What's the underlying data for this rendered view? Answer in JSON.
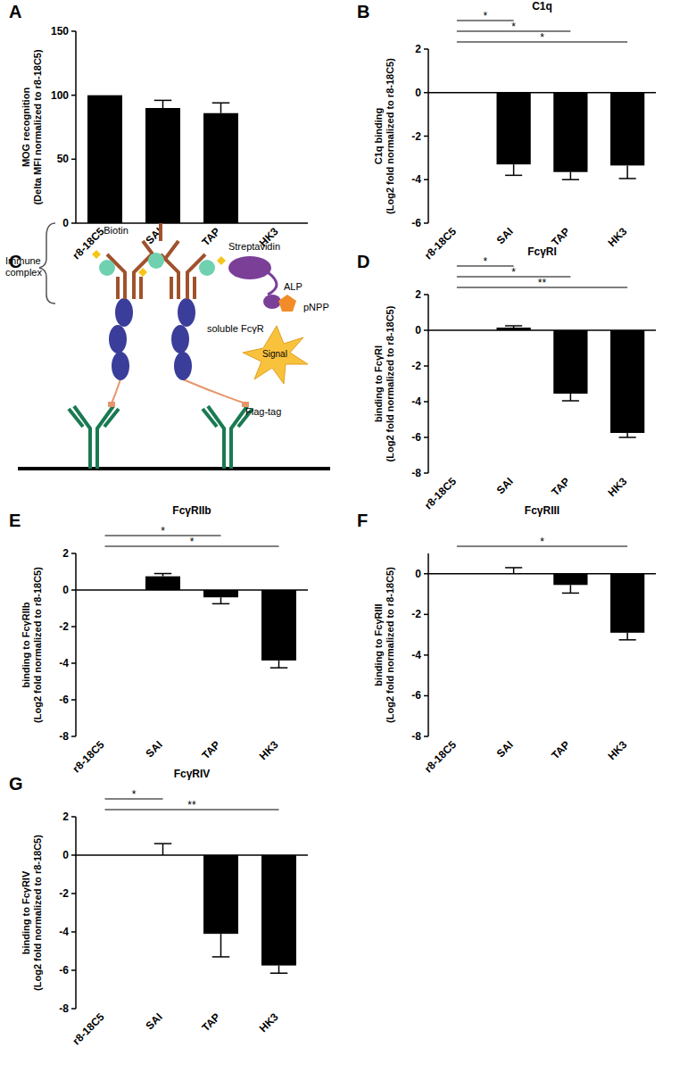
{
  "chart_data": [
    {
      "type": "bar",
      "panel": "A",
      "ylabel": "MOG recognition\n(Delta MFI normalized to r8-18C5)",
      "categories": [
        "r8-18C5",
        "SAI",
        "TAP",
        "HK3"
      ],
      "values": [
        100,
        90,
        86,
        0
      ],
      "errors": [
        0,
        6,
        8,
        0
      ],
      "color": "#000000",
      "ylim": [
        0,
        150
      ],
      "yticks": [
        0,
        50,
        100,
        150
      ],
      "significance": []
    },
    {
      "type": "bar",
      "panel": "B",
      "title": "C1q",
      "ylabel": "C1q binding\n(Log2 fold normalized to r8-18C5)",
      "categories": [
        "r8-18C5",
        "SAI",
        "TAP",
        "HK3"
      ],
      "values": [
        0,
        -3.3,
        -3.65,
        -3.35
      ],
      "errors": [
        0,
        0.5,
        0.35,
        0.6
      ],
      "color": "#000000",
      "ylim": [
        -6,
        2
      ],
      "yticks": [
        -6,
        -4,
        -2,
        0,
        2
      ],
      "significance": [
        {
          "from": 0,
          "to": 1,
          "label": "*"
        },
        {
          "from": 0,
          "to": 2,
          "label": "*"
        },
        {
          "from": 0,
          "to": 3,
          "label": "*"
        }
      ]
    },
    {
      "type": "bar",
      "panel": "D",
      "title": "FcγRI",
      "ylabel": "binding to FcγRI\n(Log2 fold normalized to r8-18C5)",
      "categories": [
        "r8-18C5",
        "SAI",
        "TAP",
        "HK3"
      ],
      "values": [
        0,
        0.15,
        -3.55,
        -5.75
      ],
      "errors": [
        0,
        0.1,
        0.4,
        0.25
      ],
      "color": "#000000",
      "ylim": [
        -8,
        2
      ],
      "yticks": [
        -8,
        -6,
        -4,
        -2,
        0,
        2
      ],
      "significance": [
        {
          "from": 0,
          "to": 1,
          "label": "*"
        },
        {
          "from": 0,
          "to": 2,
          "label": "*"
        },
        {
          "from": 0,
          "to": 3,
          "label": "**"
        }
      ]
    },
    {
      "type": "bar",
      "panel": "E",
      "title": "FcγRIIb",
      "ylabel": "binding to FcγRIIb\n(Log2 fold normalized to r8-18C5)",
      "categories": [
        "r8-18C5",
        "SAI",
        "TAP",
        "HK3"
      ],
      "values": [
        0,
        0.75,
        -0.4,
        -3.85
      ],
      "errors": [
        0,
        0.15,
        0.35,
        0.4
      ],
      "color": "#000000",
      "ylim": [
        -8,
        2
      ],
      "yticks": [
        -8,
        -6,
        -4,
        -2,
        0,
        2
      ],
      "significance": [
        {
          "from": 0,
          "to": 2,
          "label": "*"
        },
        {
          "from": 0,
          "to": 3,
          "label": "*"
        }
      ]
    },
    {
      "type": "bar",
      "panel": "F",
      "title": "FcγRIII",
      "ylabel": "binding to FcγRIII\n(Log2 fold normalized to r8-18C5)",
      "categories": [
        "r8-18C5",
        "SAI",
        "TAP",
        "HK3"
      ],
      "values": [
        0,
        0,
        -0.55,
        -2.9
      ],
      "errors": [
        0,
        0.3,
        0.4,
        0.35
      ],
      "color": "#000000",
      "ylim": [
        -8,
        1
      ],
      "yticks": [
        -8,
        -6,
        -4,
        -2,
        0
      ],
      "significance": [
        {
          "from": 0,
          "to": 3,
          "label": "*"
        }
      ]
    },
    {
      "type": "bar",
      "panel": "G",
      "title": "FcγRIV",
      "ylabel": "binding to FcγRIV\n(Log2 fold normalized to r8-18C5)",
      "categories": [
        "r8-18C5",
        "SAI",
        "TAP",
        "HK3"
      ],
      "values": [
        0,
        0,
        -4.1,
        -5.75
      ],
      "errors": [
        0,
        0.6,
        1.2,
        0.4
      ],
      "color": "#000000",
      "ylim": [
        -8,
        2
      ],
      "yticks": [
        -8,
        -6,
        -4,
        -2,
        0,
        2
      ],
      "significance": [
        {
          "from": 0,
          "to": 1,
          "label": "*"
        },
        {
          "from": 0,
          "to": 3,
          "label": "**"
        }
      ]
    }
  ],
  "diagram": {
    "panel": "C",
    "labels": [
      "Immune complex",
      "Biotin",
      "Streptavidin",
      "ALP",
      "pNPP",
      "Signal",
      "soluble FcγR",
      "Flag-tag"
    ]
  }
}
